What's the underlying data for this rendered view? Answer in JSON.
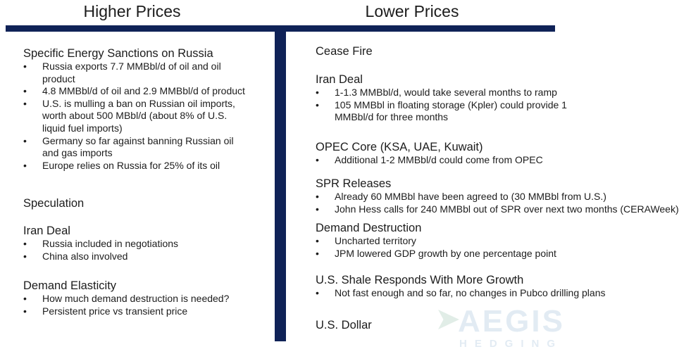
{
  "header": {
    "left_title": "Higher Prices",
    "right_title": "Lower Prices"
  },
  "left": {
    "sanctions": {
      "title": "Specific Energy Sanctions on Russia",
      "items": [
        "Russia exports 7.7 MMBbl/d of oil and oil product",
        "4.8 MMBbl/d of oil and 2.9 MMBbl/d of product",
        "U.S. is mulling a ban on Russian oil imports, worth about 500 MBbl/d (about 8% of U.S. liquid fuel imports)",
        "Germany so far against banning Russian oil and gas imports",
        "Europe relies on Russia for 25% of its oil"
      ]
    },
    "speculation": {
      "title": "Speculation"
    },
    "iran": {
      "title": "Iran Deal",
      "items": [
        "Russia included in negotiations",
        "China also involved"
      ]
    },
    "elasticity": {
      "title": "Demand Elasticity",
      "items": [
        "How much demand destruction is needed?",
        "Persistent price vs transient price"
      ]
    }
  },
  "right": {
    "ceasefire": {
      "title": "Cease Fire"
    },
    "iran": {
      "title": "Iran Deal",
      "items": [
        "1-1.3 MMBbl/d, would take several months to ramp",
        "105 MMBbl in floating storage (Kpler) could provide 1 MMBbl/d for three months"
      ]
    },
    "opec": {
      "title": "OPEC Core (KSA, UAE, Kuwait)",
      "items": [
        "Additional 1-2 MMBbl/d could come from OPEC"
      ]
    },
    "spr": {
      "title": "SPR Releases",
      "items": [
        "Already 60 MMBbl have been agreed to (30 MMBbl from U.S.)",
        "John Hess calls for 240 MMBbl out of SPR over next two months (CERAWeek)"
      ]
    },
    "demand": {
      "title": "Demand Destruction",
      "items": [
        "Uncharted territory",
        "JPM lowered GDP growth by one percentage point"
      ]
    },
    "shale": {
      "title": "U.S. Shale Responds With More Growth",
      "items": [
        "Not fast enough and so far, no changes in Pubco drilling plans"
      ]
    },
    "dollar": {
      "title": "U.S. Dollar"
    }
  },
  "bullet_glyph": "•",
  "watermark": {
    "name": "AEGIS",
    "sub": "HEDGING"
  },
  "colors": {
    "divider": "#0f2257",
    "text": "#1c1c1c",
    "watermark_blue": "#2a6fa8",
    "watermark_green": "#1f7a4d"
  }
}
